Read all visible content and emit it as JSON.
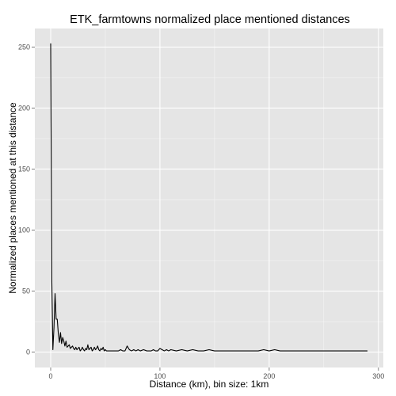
{
  "chart_data": {
    "type": "line",
    "title": "ETK_farmtowns normalized place mentioned distances",
    "xlabel": "Distance (km), bin size: 1km",
    "ylabel": "Normalized places mentioned at this distance",
    "xlim": [
      -14.5,
      304.5
    ],
    "ylim": [
      -12.6,
      265.2
    ],
    "xticks": [
      0,
      100,
      200,
      300
    ],
    "xtick_labels": [
      "0",
      "100",
      "200",
      "300"
    ],
    "yticks": [
      0,
      50,
      100,
      150,
      200,
      250
    ],
    "ytick_labels": [
      "0",
      "50",
      "100",
      "150",
      "200",
      "250"
    ],
    "grid": true,
    "colors": {
      "panel": "#e5e5e5",
      "grid": "#ffffff",
      "line": "#000000"
    },
    "series": [
      {
        "x": [
          0,
          1,
          2,
          3,
          4,
          5,
          6,
          7,
          8,
          9,
          10,
          11,
          12,
          13,
          14,
          15,
          16,
          17,
          18,
          19,
          20,
          21,
          22,
          23,
          24,
          25,
          26,
          27,
          28,
          29,
          30,
          31,
          32,
          33,
          34,
          35,
          36,
          37,
          38,
          39,
          40,
          41,
          42,
          43,
          44,
          45,
          46,
          47,
          48,
          49,
          50,
          51,
          52,
          53,
          54,
          55,
          56,
          57,
          58,
          60,
          62,
          64,
          66,
          68,
          70,
          72,
          74,
          76,
          78,
          80,
          82,
          85,
          88,
          90,
          92,
          94,
          96,
          98,
          100,
          102,
          104,
          106,
          108,
          110,
          115,
          120,
          125,
          130,
          135,
          140,
          145,
          150,
          160,
          170,
          180,
          190,
          195,
          200,
          205,
          210,
          220,
          240,
          260,
          280,
          290
        ],
        "y": [
          253,
          60,
          2,
          20,
          48,
          27,
          27,
          15,
          8,
          16,
          7,
          12,
          9,
          5,
          9,
          4,
          5,
          6,
          3,
          4,
          5,
          3,
          2,
          4,
          2,
          3,
          4,
          1,
          2,
          4,
          2,
          1,
          3,
          2,
          6,
          2,
          3,
          4,
          1,
          2,
          4,
          2,
          3,
          5,
          2,
          1,
          3,
          2,
          4,
          1,
          2,
          1,
          1,
          1,
          1,
          1,
          1,
          1,
          1,
          1,
          1,
          2,
          1,
          1,
          5,
          2,
          1,
          2,
          1,
          2,
          1,
          2,
          1,
          1,
          1,
          2,
          1,
          1,
          3,
          2,
          1,
          2,
          1,
          2,
          1,
          2,
          1,
          2,
          1,
          1,
          2,
          1,
          1,
          1,
          1,
          1,
          2,
          1,
          2,
          1,
          1,
          1,
          1,
          1,
          1
        ]
      }
    ]
  }
}
